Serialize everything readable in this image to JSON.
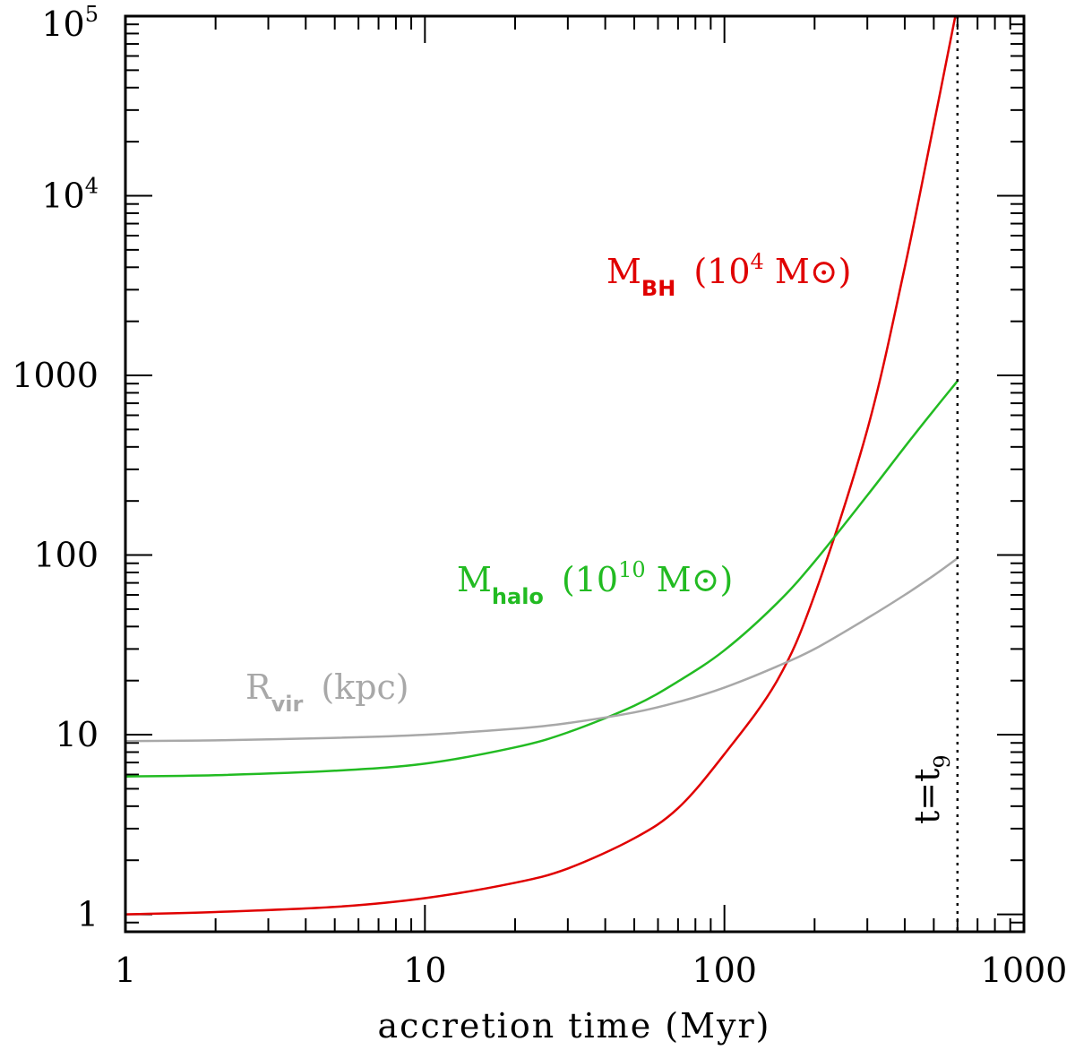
{
  "chart_data": {
    "type": "line",
    "title": "",
    "xlabel": "accretion time (Myr)",
    "ylabel": "",
    "xscale": "log",
    "yscale": "log",
    "xlim": [
      1,
      1000
    ],
    "ylim": [
      0.8,
      100000
    ],
    "x_tick_labels": [
      "1",
      "10",
      "100",
      "1000"
    ],
    "x_tick_values": [
      1,
      10,
      100,
      1000
    ],
    "y_tick_labels": [
      {
        "base": "1",
        "exp": ""
      },
      {
        "base": "10",
        "exp": ""
      },
      {
        "base": "100",
        "exp": ""
      },
      {
        "base": "1000",
        "exp": ""
      },
      {
        "base": "10",
        "exp": "4"
      },
      {
        "base": "10",
        "exp": "5"
      }
    ],
    "y_tick_values": [
      1,
      10,
      100,
      1000,
      10000,
      100000
    ],
    "series": [
      {
        "name": "M_BH",
        "label_main": "M",
        "label_sub": "BH",
        "label_pre": "(10",
        "label_sup": "4",
        "label_post": " M⊙)",
        "color": "#e00000",
        "x": [
          1,
          2,
          5,
          10,
          20,
          30,
          50,
          70,
          100,
          150,
          200,
          300,
          400,
          500,
          600
        ],
        "y": [
          1.0,
          1.03,
          1.1,
          1.23,
          1.5,
          1.8,
          2.65,
          3.9,
          7.8,
          20,
          60,
          500,
          4000,
          25000,
          115000
        ]
      },
      {
        "name": "M_halo",
        "label_main": "M",
        "label_sub": "halo",
        "label_pre": "(10",
        "label_sup": "10",
        "label_post": " M⊙)",
        "color": "#22bb22",
        "x": [
          1,
          2,
          5,
          10,
          20,
          30,
          50,
          70,
          100,
          150,
          200,
          300,
          400,
          500,
          600
        ],
        "y": [
          5.85,
          5.95,
          6.3,
          6.9,
          8.5,
          10.3,
          14.5,
          19.8,
          29.5,
          54,
          92,
          215,
          400,
          640,
          930
        ]
      },
      {
        "name": "R_vir",
        "label_main": "R",
        "label_sub": "vir",
        "label_pre": "(kpc)",
        "label_sup": "",
        "label_post": "",
        "color": "#a8a8a8",
        "x": [
          1,
          2,
          5,
          10,
          20,
          30,
          50,
          70,
          100,
          150,
          200,
          300,
          400,
          500,
          600
        ],
        "y": [
          9.2,
          9.3,
          9.6,
          10.0,
          10.8,
          11.6,
          13.3,
          15.2,
          18.3,
          24.0,
          30.0,
          44.5,
          60,
          77,
          96
        ]
      }
    ],
    "vline": {
      "x": 600,
      "style": "dotted",
      "color": "#000000",
      "label_base": "t=t",
      "label_sub": "9"
    }
  }
}
